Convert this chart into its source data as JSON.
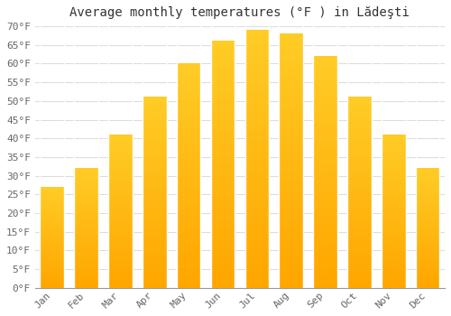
{
  "title": "Average monthly temperatures (°F ) in Lădeşti",
  "months": [
    "Jan",
    "Feb",
    "Mar",
    "Apr",
    "May",
    "Jun",
    "Jul",
    "Aug",
    "Sep",
    "Oct",
    "Nov",
    "Dec"
  ],
  "values": [
    27,
    32,
    41,
    51,
    60,
    66,
    69,
    68,
    62,
    51,
    41,
    32
  ],
  "bar_color_top": "#FFC107",
  "bar_color_bottom": "#FFA500",
  "background_color": "#FFFFFF",
  "grid_color": "#DDDDDD",
  "text_color": "#666666",
  "ylim": [
    0,
    70
  ],
  "yticks": [
    0,
    5,
    10,
    15,
    20,
    25,
    30,
    35,
    40,
    45,
    50,
    55,
    60,
    65,
    70
  ],
  "title_fontsize": 10,
  "tick_fontsize": 8,
  "font_family": "monospace"
}
